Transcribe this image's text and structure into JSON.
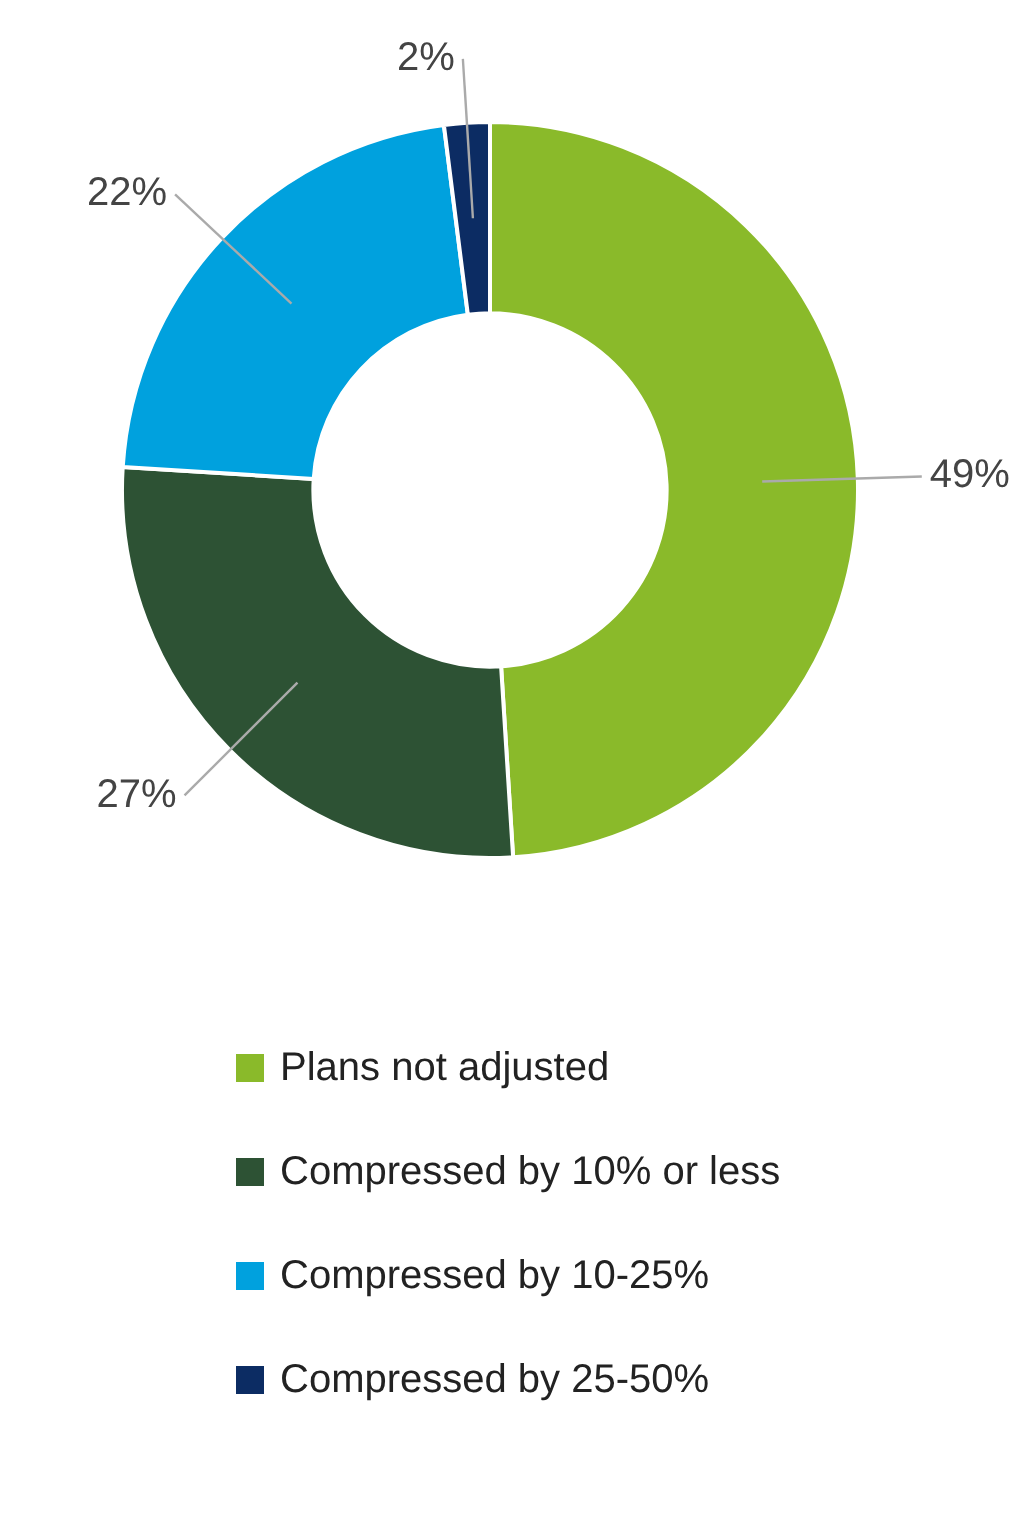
{
  "chart_data": {
    "type": "donut",
    "categories": [
      "Plans not adjusted",
      "Compressed by 10% or less",
      "Compressed by 10-25%",
      "Compressed by 25-50%"
    ],
    "values": [
      49,
      27,
      22,
      2
    ],
    "colors": [
      "#8aba2a",
      "#2d5234",
      "#00a1de",
      "#0c2c63"
    ],
    "value_labels": [
      "49%",
      "27%",
      "22%",
      "2%"
    ],
    "legend": "bottom"
  }
}
